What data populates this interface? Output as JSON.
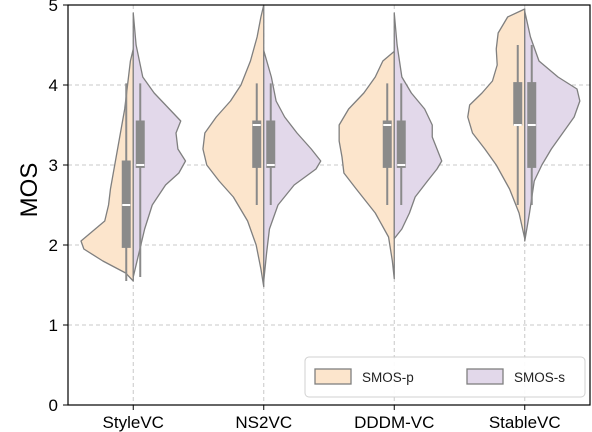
{
  "chart_data": {
    "type": "violin",
    "ylabel": "MOS",
    "ylim": [
      0,
      5
    ],
    "yticks": [
      "0",
      "1",
      "2",
      "3",
      "4",
      "5"
    ],
    "grid": true,
    "categories": [
      "StyleVC",
      "NS2VC",
      "DDDM-VC",
      "StableVC"
    ],
    "legend_position": "bottom-right",
    "series": [
      {
        "name": "SMOS-p",
        "side": "left",
        "color": "#fce5cc",
        "stats": [
          {
            "min": 1.55,
            "q1": 1.97,
            "median": 2.5,
            "q3": 3.05,
            "max": 4.02
          },
          {
            "min": 2.5,
            "q1": 2.97,
            "median": 3.5,
            "q3": 3.55,
            "max": 4.02
          },
          {
            "min": 2.5,
            "q1": 2.97,
            "median": 3.5,
            "q3": 3.55,
            "max": 4.02
          },
          {
            "min": 2.5,
            "q1": 3.5,
            "median": 3.5,
            "q3": 4.03,
            "max": 4.5
          }
        ],
        "density": [
          [
            [
              1.55,
              0
            ],
            [
              1.65,
              0.08
            ],
            [
              1.8,
              0.32
            ],
            [
              1.95,
              0.52
            ],
            [
              2.05,
              0.55
            ],
            [
              2.15,
              0.45
            ],
            [
              2.3,
              0.3
            ],
            [
              2.5,
              0.26
            ],
            [
              2.7,
              0.24
            ],
            [
              2.9,
              0.21
            ],
            [
              3.1,
              0.18
            ],
            [
              3.3,
              0.15
            ],
            [
              3.5,
              0.12
            ],
            [
              3.7,
              0.09
            ],
            [
              3.9,
              0.07
            ],
            [
              4.1,
              0.05
            ],
            [
              4.3,
              0.03
            ],
            [
              4.45,
              0
            ]
          ],
          [
            [
              1.48,
              0
            ],
            [
              1.7,
              0.03
            ],
            [
              2.0,
              0.08
            ],
            [
              2.3,
              0.17
            ],
            [
              2.6,
              0.32
            ],
            [
              2.8,
              0.47
            ],
            [
              3.0,
              0.6
            ],
            [
              3.2,
              0.64
            ],
            [
              3.4,
              0.62
            ],
            [
              3.6,
              0.5
            ],
            [
              3.8,
              0.35
            ],
            [
              4.0,
              0.24
            ],
            [
              4.3,
              0.14
            ],
            [
              4.6,
              0.07
            ],
            [
              4.85,
              0.03
            ],
            [
              5.0,
              0
            ]
          ],
          [
            [
              1.58,
              0
            ],
            [
              1.8,
              0.02
            ],
            [
              2.1,
              0.06
            ],
            [
              2.4,
              0.2
            ],
            [
              2.7,
              0.4
            ],
            [
              2.9,
              0.53
            ],
            [
              3.1,
              0.55
            ],
            [
              3.3,
              0.58
            ],
            [
              3.5,
              0.58
            ],
            [
              3.7,
              0.48
            ],
            [
              3.9,
              0.32
            ],
            [
              4.1,
              0.2
            ],
            [
              4.3,
              0.12
            ],
            [
              4.42,
              0
            ]
          ],
          [
            [
              2.08,
              0
            ],
            [
              2.4,
              0.06
            ],
            [
              2.7,
              0.16
            ],
            [
              3.0,
              0.3
            ],
            [
              3.2,
              0.42
            ],
            [
              3.4,
              0.55
            ],
            [
              3.6,
              0.6
            ],
            [
              3.75,
              0.58
            ],
            [
              3.9,
              0.45
            ],
            [
              4.05,
              0.34
            ],
            [
              4.25,
              0.29
            ],
            [
              4.45,
              0.3
            ],
            [
              4.65,
              0.28
            ],
            [
              4.85,
              0.18
            ],
            [
              4.95,
              0
            ]
          ]
        ]
      },
      {
        "name": "SMOS-s",
        "side": "right",
        "color": "#e2d8ea",
        "stats": [
          {
            "min": 1.6,
            "q1": 2.97,
            "median": 3.0,
            "q3": 3.55,
            "max": 4.02
          },
          {
            "min": 2.5,
            "q1": 2.97,
            "median": 3.0,
            "q3": 3.55,
            "max": 4.02
          },
          {
            "min": 2.5,
            "q1": 2.97,
            "median": 3.0,
            "q3": 3.55,
            "max": 4.02
          },
          {
            "min": 2.5,
            "q1": 2.97,
            "median": 3.5,
            "q3": 4.03,
            "max": 4.5
          }
        ],
        "density": [
          [
            [
              1.6,
              0
            ],
            [
              1.9,
              0.06
            ],
            [
              2.2,
              0.12
            ],
            [
              2.5,
              0.2
            ],
            [
              2.75,
              0.34
            ],
            [
              2.9,
              0.48
            ],
            [
              3.05,
              0.55
            ],
            [
              3.2,
              0.47
            ],
            [
              3.4,
              0.45
            ],
            [
              3.55,
              0.5
            ],
            [
              3.7,
              0.38
            ],
            [
              3.9,
              0.22
            ],
            [
              4.1,
              0.1
            ],
            [
              4.5,
              0.03
            ],
            [
              4.9,
              0
            ]
          ],
          [
            [
              1.55,
              0
            ],
            [
              1.9,
              0.03
            ],
            [
              2.2,
              0.06
            ],
            [
              2.5,
              0.15
            ],
            [
              2.75,
              0.32
            ],
            [
              2.95,
              0.55
            ],
            [
              3.05,
              0.6
            ],
            [
              3.2,
              0.5
            ],
            [
              3.4,
              0.35
            ],
            [
              3.6,
              0.22
            ],
            [
              3.8,
              0.13
            ],
            [
              4.1,
              0.08
            ],
            [
              4.43,
              0
            ]
          ],
          [
            [
              2.08,
              0
            ],
            [
              2.2,
              0.08
            ],
            [
              2.4,
              0.16
            ],
            [
              2.6,
              0.22
            ],
            [
              2.8,
              0.35
            ],
            [
              2.95,
              0.45
            ],
            [
              3.05,
              0.5
            ],
            [
              3.2,
              0.45
            ],
            [
              3.35,
              0.4
            ],
            [
              3.5,
              0.4
            ],
            [
              3.7,
              0.32
            ],
            [
              3.9,
              0.18
            ],
            [
              4.1,
              0.08
            ],
            [
              4.5,
              0.03
            ],
            [
              4.9,
              0
            ]
          ],
          [
            [
              2.05,
              0
            ],
            [
              2.4,
              0.05
            ],
            [
              2.8,
              0.1
            ],
            [
              3.0,
              0.18
            ],
            [
              3.2,
              0.28
            ],
            [
              3.4,
              0.4
            ],
            [
              3.6,
              0.52
            ],
            [
              3.8,
              0.58
            ],
            [
              3.95,
              0.55
            ],
            [
              4.1,
              0.35
            ],
            [
              4.3,
              0.15
            ],
            [
              4.6,
              0.06
            ],
            [
              4.92,
              0
            ]
          ]
        ]
      }
    ]
  }
}
